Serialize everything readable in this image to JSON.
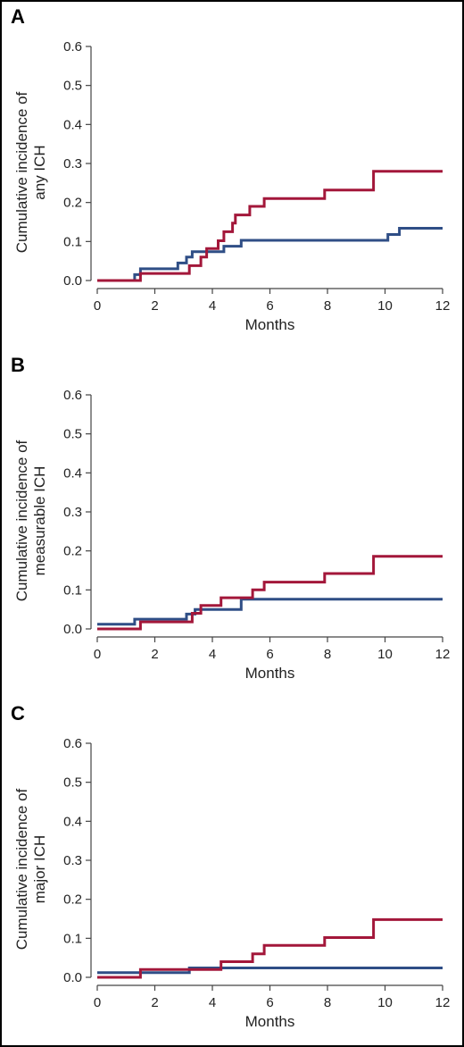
{
  "colors": {
    "red": "#a3173a",
    "blue": "#2f4e86"
  },
  "chart_data": [
    {
      "panel": "A",
      "type": "line",
      "ylabel_lines": [
        "Cumulative incidence of",
        "any ICH"
      ],
      "xlabel": "Months",
      "xlim": [
        0,
        12
      ],
      "ylim": [
        0,
        0.6
      ],
      "xticks": [
        "0",
        "2",
        "4",
        "6",
        "8",
        "10",
        "12"
      ],
      "yticks": [
        "0.0",
        "0.1",
        "0.2",
        "0.3",
        "0.4",
        "0.5",
        "0.6"
      ],
      "series": [
        {
          "color": "#2f4e86",
          "step": [
            [
              0,
              0
            ],
            [
              1.3,
              0
            ],
            [
              1.3,
              0.015
            ],
            [
              1.5,
              0.015
            ],
            [
              1.5,
              0.03
            ],
            [
              2.8,
              0.03
            ],
            [
              2.8,
              0.045
            ],
            [
              3.1,
              0.045
            ],
            [
              3.1,
              0.06
            ],
            [
              3.3,
              0.06
            ],
            [
              3.3,
              0.074
            ],
            [
              4.4,
              0.074
            ],
            [
              4.4,
              0.088
            ],
            [
              5.0,
              0.088
            ],
            [
              5.0,
              0.103
            ],
            [
              10.1,
              0.103
            ],
            [
              10.1,
              0.118
            ],
            [
              10.5,
              0.118
            ],
            [
              10.5,
              0.134
            ],
            [
              12,
              0.134
            ]
          ]
        },
        {
          "color": "#a3173a",
          "step": [
            [
              0,
              0
            ],
            [
              1.5,
              0
            ],
            [
              1.5,
              0.018
            ],
            [
              3.2,
              0.018
            ],
            [
              3.2,
              0.038
            ],
            [
              3.6,
              0.038
            ],
            [
              3.6,
              0.06
            ],
            [
              3.8,
              0.06
            ],
            [
              3.8,
              0.082
            ],
            [
              4.2,
              0.082
            ],
            [
              4.2,
              0.102
            ],
            [
              4.4,
              0.102
            ],
            [
              4.4,
              0.125
            ],
            [
              4.7,
              0.125
            ],
            [
              4.7,
              0.147
            ],
            [
              4.8,
              0.147
            ],
            [
              4.8,
              0.168
            ],
            [
              5.3,
              0.168
            ],
            [
              5.3,
              0.19
            ],
            [
              5.8,
              0.19
            ],
            [
              5.8,
              0.21
            ],
            [
              7.9,
              0.21
            ],
            [
              7.9,
              0.232
            ],
            [
              9.6,
              0.232
            ],
            [
              9.6,
              0.28
            ],
            [
              12,
              0.28
            ]
          ]
        }
      ]
    },
    {
      "panel": "B",
      "type": "line",
      "ylabel_lines": [
        "Cumulative incidence of",
        "measurable ICH"
      ],
      "xlabel": "Months",
      "xlim": [
        0,
        12
      ],
      "ylim": [
        0,
        0.6
      ],
      "xticks": [
        "0",
        "2",
        "4",
        "6",
        "8",
        "10",
        "12"
      ],
      "yticks": [
        "0.0",
        "0.1",
        "0.2",
        "0.3",
        "0.4",
        "0.5",
        "0.6"
      ],
      "series": [
        {
          "color": "#2f4e86",
          "step": [
            [
              0,
              0.012
            ],
            [
              1.3,
              0.012
            ],
            [
              1.3,
              0.025
            ],
            [
              3.1,
              0.025
            ],
            [
              3.1,
              0.038
            ],
            [
              3.4,
              0.038
            ],
            [
              3.4,
              0.05
            ],
            [
              5.0,
              0.05
            ],
            [
              5.0,
              0.076
            ],
            [
              12,
              0.076
            ]
          ]
        },
        {
          "color": "#a3173a",
          "step": [
            [
              0,
              0
            ],
            [
              1.5,
              0
            ],
            [
              1.5,
              0.018
            ],
            [
              3.3,
              0.018
            ],
            [
              3.3,
              0.04
            ],
            [
              3.6,
              0.04
            ],
            [
              3.6,
              0.06
            ],
            [
              4.3,
              0.06
            ],
            [
              4.3,
              0.08
            ],
            [
              5.4,
              0.08
            ],
            [
              5.4,
              0.1
            ],
            [
              5.8,
              0.1
            ],
            [
              5.8,
              0.12
            ],
            [
              7.9,
              0.12
            ],
            [
              7.9,
              0.142
            ],
            [
              9.6,
              0.142
            ],
            [
              9.6,
              0.186
            ],
            [
              12,
              0.186
            ]
          ]
        }
      ]
    },
    {
      "panel": "C",
      "type": "line",
      "ylabel_lines": [
        "Cumulative incidence of",
        "major ICH"
      ],
      "xlabel": "Months",
      "xlim": [
        0,
        12
      ],
      "ylim": [
        0,
        0.6
      ],
      "xticks": [
        "0",
        "2",
        "4",
        "6",
        "8",
        "10",
        "12"
      ],
      "yticks": [
        "0.0",
        "0.1",
        "0.2",
        "0.3",
        "0.4",
        "0.5",
        "0.6"
      ],
      "series": [
        {
          "color": "#2f4e86",
          "step": [
            [
              0,
              0.012
            ],
            [
              3.2,
              0.012
            ],
            [
              3.2,
              0.024
            ],
            [
              12,
              0.024
            ]
          ]
        },
        {
          "color": "#a3173a",
          "step": [
            [
              0,
              0
            ],
            [
              1.5,
              0
            ],
            [
              1.5,
              0.02
            ],
            [
              4.3,
              0.02
            ],
            [
              4.3,
              0.04
            ],
            [
              5.4,
              0.04
            ],
            [
              5.4,
              0.06
            ],
            [
              5.8,
              0.06
            ],
            [
              5.8,
              0.082
            ],
            [
              7.9,
              0.082
            ],
            [
              7.9,
              0.102
            ],
            [
              9.6,
              0.102
            ],
            [
              9.6,
              0.148
            ],
            [
              12,
              0.148
            ]
          ]
        }
      ]
    }
  ]
}
